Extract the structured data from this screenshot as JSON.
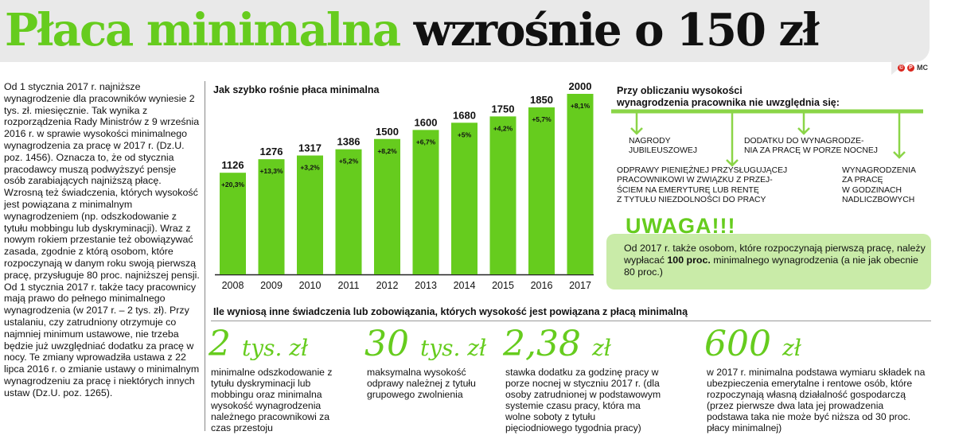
{
  "header": {
    "title_green": "Płaca minimalna",
    "title_dark": "wzrośnie o 150 zł",
    "credit": "MC",
    "credit_marks": [
      "©",
      "P"
    ]
  },
  "left_column": {
    "text": "Od 1 stycznia 2017 r. najniższe wynagrodzenie dla pracowników wyniesie 2 tys. zł. miesięcznie. Tak wynika z rozporządzenia Rady Ministrów z 9 września 2016 r. w sprawie wysokości minimalnego wynagrodzenia za pracę w 2017 r. (Dz.U. poz. 1456). Oznacza to, że od stycznia pracodawcy muszą podwyższyć pensje osób zarabiających najniższą płacę. Wzrosną też świadczenia, których wysokość jest powiązana z minimalnym wynagrodzeniem (np. odszkodowanie z tytułu mobbingu lub dyskryminacji). Wraz z nowym rokiem przestanie też obowiązywać zasada, zgodnie z którą osobom, które rozpoczynają w danym roku swoją pierwszą pracę, przysługuje 80 proc. najniższej pensji. Od 1 stycznia 2017 r. także tacy pracownicy mają prawo do pełnego minimalnego wynagrodzenia (w 2017 r. – 2 tys. zł). Przy ustalaniu, czy zatrudniony otrzymuje co najmniej minimum ustawowe, nie trzeba będzie już uwzględniać dodatku za pracę w nocy. Te zmiany wprowadziła ustawa z 22 lipca 2016 r. o zmianie ustawy o minimalnym wynagrodzeniu za pracę i niektórych innych ustaw (Dz.U. poz. 1265)."
  },
  "chart_data": {
    "type": "bar",
    "title": "Jak szybko rośnie płaca minimalna",
    "categories": [
      "2008",
      "2009",
      "2010",
      "2011",
      "2012",
      "2013",
      "2014",
      "2015",
      "2016",
      "2017"
    ],
    "values": [
      1126,
      1276,
      1317,
      1386,
      1500,
      1600,
      1680,
      1750,
      1850,
      2000
    ],
    "value_labels": [
      "1126",
      "1276",
      "1317",
      "1386",
      "1500",
      "1600",
      "1680",
      "1750",
      "1850",
      "2000"
    ],
    "growth_labels": [
      "+20,3%",
      "+13,3%",
      "+3,2%",
      "+5,2%",
      "+8,2%",
      "+6,7%",
      "+5%",
      "+4,2%",
      "+5,7%",
      "+8,1%"
    ],
    "ylim": [
      0,
      2000
    ],
    "grid": false,
    "bar_color": "#66cc1e",
    "xlabel": "",
    "ylabel": ""
  },
  "right_panel": {
    "title_line1": "Przy obliczaniu wysokości",
    "title_line2": "wynagrodzenia pracownika nie uwzględnia się:",
    "items": [
      {
        "line1": "NAGRODY",
        "line2": "JUBILEUSZOWEJ"
      },
      {
        "line1": "DODATKU DO WYNAGRODZE-",
        "line2": "NIA ZA PRACĘ W PORZE NOCNEJ"
      },
      {
        "line1": "ODPRAWY PIENIĘŻNEJ PRZYSŁUGUJĄCEJ",
        "line2": "PRACOWNIKOWI W ZWIĄZKU Z PRZEJ-",
        "line3": "ŚCIEM NA EMERYTURĘ LUB RENTĘ",
        "line4": "Z TYTUŁU NIEZDOLNOŚCI DO PRACY"
      },
      {
        "line1": "WYNAGRODZENIA",
        "line2": "ZA PRACĘ",
        "line3": "W GODZINACH",
        "line4": "NADLICZBOWYCH"
      }
    ]
  },
  "uwaga": {
    "title": "UWAGA!!!",
    "text_before": "Od 2017 r. także osobom, które rozpoczynają pierwszą pracę, należy wypłacać ",
    "text_bold": "100 proc.",
    "text_after": " minimalnego wynagrodzenia (a nie jak obecnie 80 proc.)"
  },
  "bottom": {
    "title": "Ile wyniosą inne świadczenia lub zobowiązania, których wysokość jest powiązana z płacą minimalną",
    "items": [
      {
        "num": "2",
        "unit": "tys. zł",
        "text": "minimalne odszkodowanie z tytułu dyskryminacji lub mobbingu oraz minimalna wysokość wynagrodzenia należnego pracownikowi za czas przestoju"
      },
      {
        "num": "30",
        "unit": "tys. zł",
        "text": "maksymalna wysokość odprawy należnej z tytułu grupowego zwolnienia"
      },
      {
        "num": "2,38",
        "unit": "zł",
        "text": "stawka dodatku za godzinę pracy w porze nocnej w styczniu 2017 r. (dla osoby zatrudnionej w podstawowym systemie czasu pracy, która ma wolne soboty z tytułu pięciodniowego tygodnia pracy)"
      },
      {
        "num": "600",
        "unit": "zł",
        "text": "w 2017 r. minimalna podstawa wymiaru składek na ubezpieczenia emerytalne i rentowe osób, które rozpoczynają własną działalność gospodarczą (przez pierwsze dwa lata jej prowadzenia podstawa taka nie może być niższa od 30 proc. płacy minimalnej)"
      }
    ]
  }
}
